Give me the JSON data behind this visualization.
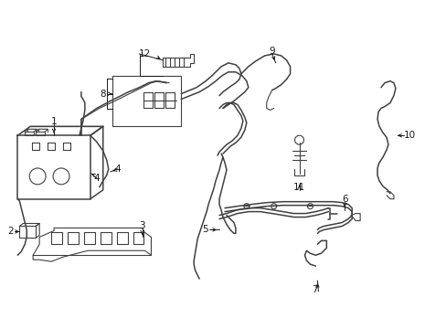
{
  "bg": "#ffffff",
  "lc": "#404040",
  "tc": "#1a1a1a",
  "lw_thin": 0.8,
  "lw_med": 1.1,
  "lw_thick": 1.4,
  "fs": 7.5,
  "fig_w": 4.89,
  "fig_h": 3.6,
  "dpi": 100,
  "xlim": [
    0,
    489
  ],
  "ylim": [
    0,
    360
  ]
}
